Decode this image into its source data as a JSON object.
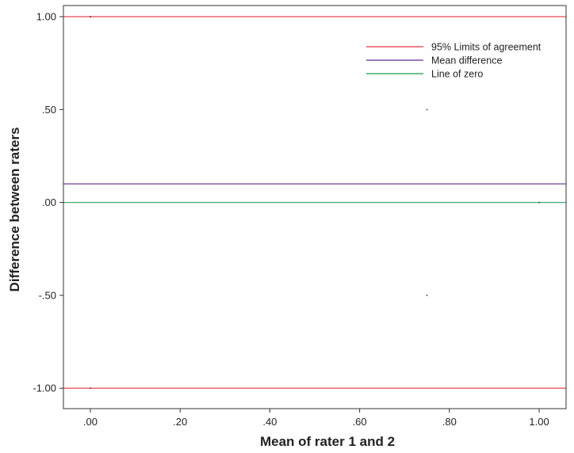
{
  "chart_data": {
    "type": "line",
    "title": "",
    "xlabel": "Mean of rater 1 and 2",
    "ylabel": "Difference between raters",
    "xlim": [
      -0.06,
      1.06
    ],
    "ylim": [
      -1.11,
      1.06
    ],
    "x_ticks": [
      0.0,
      0.2,
      0.4,
      0.6,
      0.8,
      1.0
    ],
    "x_tick_labels": [
      ".00",
      ".20",
      ".40",
      ".60",
      ".80",
      "1.00"
    ],
    "y_ticks": [
      1.0,
      0.5,
      0.0,
      -0.5,
      -1.0
    ],
    "y_tick_labels": [
      "1.00",
      ".50",
      ".00",
      "-.50",
      "-1.00"
    ],
    "grid": false,
    "legend_position": "top-right",
    "series": [
      {
        "name": "95% Limits of agreement",
        "color": "#e8585f",
        "kind": "hline",
        "values": [
          1.0,
          -1.0
        ]
      },
      {
        "name": "Mean difference",
        "color": "#7a4ea3",
        "kind": "hline",
        "values": [
          0.1
        ]
      },
      {
        "name": "Line of zero",
        "color": "#3fae6b",
        "kind": "hline",
        "values": [
          0.0
        ]
      }
    ],
    "points": [
      {
        "x": 0.0,
        "y": 1.0
      },
      {
        "x": 0.75,
        "y": 0.5
      },
      {
        "x": 1.0,
        "y": 0.0
      },
      {
        "x": 0.75,
        "y": -0.5
      },
      {
        "x": 0.0,
        "y": -1.0
      }
    ]
  }
}
